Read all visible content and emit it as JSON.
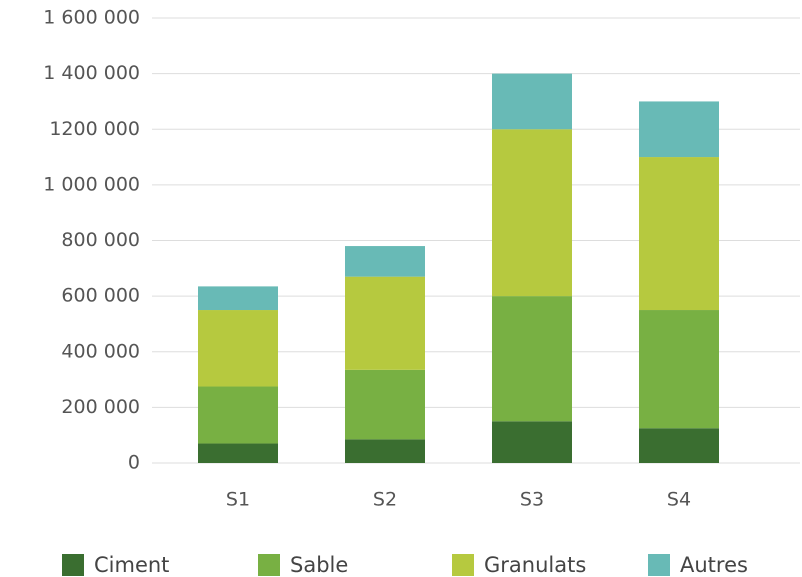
{
  "chart_data": {
    "type": "stacked_bar",
    "categories": [
      "S1",
      "S2",
      "S3",
      "S4"
    ],
    "series": [
      {
        "name": "Ciment",
        "color": "#3a6e30",
        "values": [
          70000,
          85000,
          150000,
          125000
        ]
      },
      {
        "name": "Sable",
        "color": "#78b043",
        "values": [
          205000,
          250000,
          450000,
          425000
        ]
      },
      {
        "name": "Granulats",
        "color": "#b6c93f",
        "values": [
          275000,
          335000,
          600000,
          550000
        ]
      },
      {
        "name": "Autres",
        "color": "#68bab6",
        "values": [
          85000,
          110000,
          200000,
          200000
        ]
      }
    ],
    "ylim": [
      0,
      1600000
    ],
    "yticks": [
      0,
      {
        "value": 200000,
        "label": "200 000"
      },
      {
        "value": 400000,
        "label": "400 000"
      },
      {
        "value": 600000,
        "label": "600 000"
      },
      {
        "value": 800000,
        "label": "800 000"
      },
      {
        "value": 1000000,
        "label": "1 000 000"
      },
      {
        "value": 1200000,
        "label": "1200 000"
      },
      {
        "value": 1400000,
        "label": "1 400 000"
      },
      {
        "value": 1600000,
        "label": "1 600 000"
      }
    ],
    "grid": true,
    "legend": "bottom"
  }
}
